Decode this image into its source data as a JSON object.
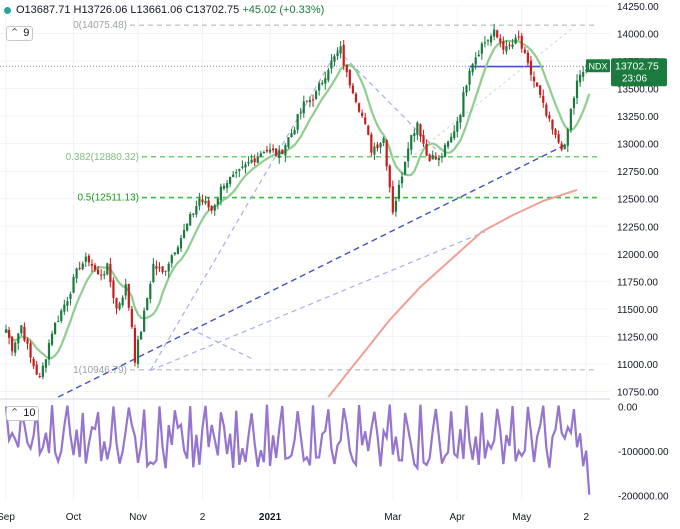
{
  "ohlc": {
    "open": "O13687.71",
    "high": "H13726.06",
    "low": "L13661.06",
    "close": "C13702.75",
    "change": "+45.02 (+0.33%)"
  },
  "indicators": {
    "price_ma": "9",
    "volume_ma": "10"
  },
  "colors": {
    "up": "#1b7a3e",
    "down": "#c81b1b",
    "ma": "#8fce8f",
    "ma200": "#f0a095",
    "fib": "#b8b8b8",
    "fib_green": "#3fbf3f",
    "trend": "#4450c8",
    "trend_light": "#a8b0e6",
    "volume": "#9575cd",
    "price_label": "#1b7a3e"
  },
  "symbol_label": {
    "ticker": "NDX",
    "price": "13702.75",
    "countdown": "23:06"
  },
  "chart_data": {
    "type": "candlestick",
    "price_axis": {
      "ylim": [
        10700,
        14250
      ],
      "ticks": [
        "14250.00",
        "14000.00",
        "13750.00",
        "13500.00",
        "13250.00",
        "13000.00",
        "12750.00",
        "12500.00",
        "12250.00",
        "12000.00",
        "11750.00",
        "11500.00",
        "11250.00",
        "11000.00",
        "10750.00"
      ],
      "tick_values": [
        14250,
        14000,
        13750,
        13500,
        13250,
        13000,
        12750,
        12500,
        12250,
        12000,
        11750,
        11500,
        11250,
        11000,
        10750
      ]
    },
    "volume_axis": {
      "ylim": [
        -210000,
        15000
      ],
      "ticks": [
        "0.00",
        "-100000.00",
        "-200000.00"
      ],
      "tick_values": [
        0,
        -100000,
        -200000
      ]
    },
    "x_axis": {
      "labels": [
        "Sep",
        "Oct",
        "Nov",
        "2",
        "2021",
        "Mar",
        "Apr",
        "May",
        "2"
      ],
      "label_bars": [
        0,
        22,
        43,
        64,
        86,
        126,
        147,
        168,
        189
      ],
      "bold": [
        "2021"
      ]
    },
    "fib_levels": [
      {
        "label": "0(14075.48)",
        "value": 14075.48,
        "style": "gray"
      },
      {
        "label": "0.382(12880.32)",
        "value": 12880.32,
        "style": "green"
      },
      {
        "label": "0.5(12511.13)",
        "value": 12511.13,
        "style": "green-bold"
      },
      {
        "label": "1(10946.79)",
        "value": 10946.79,
        "style": "gray"
      }
    ],
    "current_price": 13702.75,
    "anchors": [
      {
        "bar": -2,
        "close": 11480
      },
      {
        "bar": 2,
        "close": 11150
      },
      {
        "bar": 5,
        "close": 11350
      },
      {
        "bar": 8,
        "close": 11050
      },
      {
        "bar": 11,
        "close": 10860
      },
      {
        "bar": 15,
        "close": 11300
      },
      {
        "bar": 20,
        "close": 11600
      },
      {
        "bar": 24,
        "close": 11900
      },
      {
        "bar": 27,
        "close": 11950
      },
      {
        "bar": 30,
        "close": 11800
      },
      {
        "bar": 33,
        "close": 11870
      },
      {
        "bar": 36,
        "close": 11500
      },
      {
        "bar": 39,
        "close": 11700
      },
      {
        "bar": 41,
        "close": 11350
      },
      {
        "bar": 42,
        "close": 11050
      },
      {
        "bar": 45,
        "close": 11450
      },
      {
        "bar": 48,
        "close": 11900
      },
      {
        "bar": 51,
        "close": 11820
      },
      {
        "bar": 55,
        "close": 12050
      },
      {
        "bar": 58,
        "close": 12200
      },
      {
        "bar": 63,
        "close": 12500
      },
      {
        "bar": 67,
        "close": 12400
      },
      {
        "bar": 71,
        "close": 12650
      },
      {
        "bar": 75,
        "close": 12700
      },
      {
        "bar": 80,
        "close": 12850
      },
      {
        "bar": 84,
        "close": 12950
      },
      {
        "bar": 89,
        "close": 12900
      },
      {
        "bar": 93,
        "close": 13100
      },
      {
        "bar": 97,
        "close": 13350
      },
      {
        "bar": 101,
        "close": 13450
      },
      {
        "bar": 105,
        "close": 13700
      },
      {
        "bar": 109,
        "close": 13850
      },
      {
        "bar": 111,
        "close": 13620
      },
      {
        "bar": 113,
        "close": 13500
      },
      {
        "bar": 116,
        "close": 13250
      },
      {
        "bar": 119,
        "close": 12950
      },
      {
        "bar": 123,
        "close": 13050
      },
      {
        "bar": 126,
        "close": 12400
      },
      {
        "bar": 128,
        "close": 12600
      },
      {
        "bar": 131,
        "close": 13000
      },
      {
        "bar": 134,
        "close": 13200
      },
      {
        "bar": 137,
        "close": 12900
      },
      {
        "bar": 141,
        "close": 12850
      },
      {
        "bar": 145,
        "close": 13050
      },
      {
        "bar": 148,
        "close": 13300
      },
      {
        "bar": 151,
        "close": 13700
      },
      {
        "bar": 155,
        "close": 13900
      },
      {
        "bar": 159,
        "close": 14000
      },
      {
        "bar": 163,
        "close": 13850
      },
      {
        "bar": 167,
        "close": 13950
      },
      {
        "bar": 170,
        "close": 13700
      },
      {
        "bar": 173,
        "close": 13500
      },
      {
        "bar": 176,
        "close": 13250
      },
      {
        "bar": 179,
        "close": 13050
      },
      {
        "bar": 182,
        "close": 12950
      },
      {
        "bar": 184,
        "close": 13300
      },
      {
        "bar": 186,
        "close": 13550
      },
      {
        "bar": 188,
        "close": 13650
      },
      {
        "bar": 190,
        "close": 13700
      }
    ],
    "ma200": [
      {
        "bar": 105,
        "value": 10700
      },
      {
        "bar": 115,
        "value": 11050
      },
      {
        "bar": 125,
        "value": 11400
      },
      {
        "bar": 135,
        "value": 11700
      },
      {
        "bar": 145,
        "value": 11950
      },
      {
        "bar": 155,
        "value": 12200
      },
      {
        "bar": 165,
        "value": 12350
      },
      {
        "bar": 175,
        "value": 12480
      },
      {
        "bar": 186,
        "value": 12580
      }
    ],
    "trendlines": [
      {
        "from": [
          17,
          10700
        ],
        "to": [
          183,
          13000
        ],
        "style": "dashed"
      },
      {
        "from": [
          151,
          13700
        ],
        "to": [
          175,
          13700
        ],
        "style": "solid"
      },
      {
        "from": [
          133,
          12900
        ],
        "to": [
          185,
          14060
        ],
        "style": "dashed-faint"
      },
      {
        "from": [
          47,
          10940
        ],
        "to": [
          156,
          12200
        ],
        "style": "dashed-light"
      },
      {
        "from": [
          47,
          10940
        ],
        "to": [
          108,
          13850
        ],
        "style": "dashed-light"
      },
      {
        "from": [
          108,
          13850
        ],
        "to": [
          140,
          12950
        ],
        "style": "dashed-light"
      },
      {
        "from": [
          60,
          11320
        ],
        "to": [
          80,
          11050
        ],
        "style": "dashed-light"
      }
    ]
  }
}
